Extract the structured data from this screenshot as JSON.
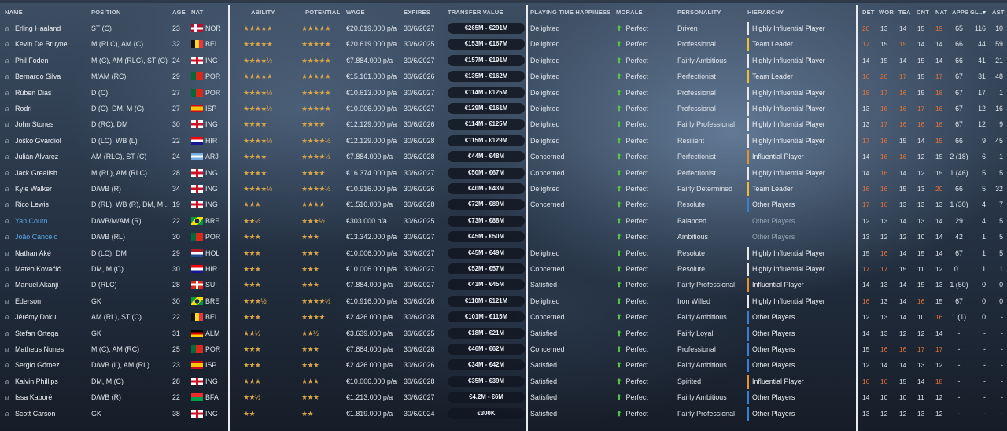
{
  "headers": {
    "name": "NAME",
    "position": "POSITION",
    "age": "AGE",
    "nat": "NAT",
    "ability": "ABILITY",
    "potential": "POTENTIAL",
    "wage": "WAGE",
    "expires": "EXPIRES",
    "transfer_value": "TRANSFER VALUE",
    "playing_time": "PLAYING TIME HAPPINESS",
    "morale": "MORALE",
    "personality": "PERSONALITY",
    "hierarchy": "HIERARCHY",
    "det": "DET",
    "wor": "WOR",
    "tea": "TEA",
    "cnt": "CNT",
    "nat_attr": "NAT",
    "apps": "APPS",
    "gls": "GL...",
    "sort_indicator": "▾",
    "ast": "AST"
  },
  "colors": {
    "stars": "#d4a34a",
    "morale_arrow": "#55c446",
    "loan_name": "#5aa8e6",
    "attr_high": "#e8733a",
    "attr_normal": "#dfe4ea",
    "hier_white": "#e8e8e8",
    "hier_yellow": "#e8c030",
    "hier_orange": "#e8922e",
    "hier_blue": "#3a7fd0"
  },
  "players": [
    {
      "name": "Erling Haaland",
      "position": "ST (C)",
      "age": "23",
      "nat": "NOR",
      "flag": "NOR",
      "ability": "★★★★★",
      "potential": "★★★★★",
      "wage": "€20.619.000 p/a",
      "expires": "30/6/2027",
      "tv": "€265M - €291M",
      "pth": "Delighted",
      "morale": "Perfect",
      "personality": "Driven",
      "hierarchy": "Highly Influential Player",
      "hcolor": "white",
      "det": "20",
      "wor": "13",
      "tea": "14",
      "cnt": "15",
      "natattr": "19",
      "apps": "65",
      "gls": "116",
      "ast": "10",
      "hi": [
        1,
        0,
        0,
        0,
        1
      ]
    },
    {
      "name": "Kevin De Bruyne",
      "position": "M (RLC), AM (C)",
      "age": "32",
      "nat": "BEL",
      "flag": "BEL",
      "ability": "★★★★★",
      "potential": "★★★★★",
      "wage": "€20.619.000 p/a",
      "expires": "30/6/2025",
      "tv": "€153M - €167M",
      "pth": "Delighted",
      "morale": "Perfect",
      "personality": "Professional",
      "hierarchy": "Team Leader",
      "hcolor": "yellow",
      "det": "17",
      "wor": "15",
      "tea": "15",
      "cnt": "14",
      "natattr": "14",
      "apps": "66",
      "gls": "44",
      "ast": "59",
      "hi": [
        1,
        0,
        1,
        0,
        0
      ]
    },
    {
      "name": "Phil Foden",
      "position": "M (C), AM (RLC), ST (C)",
      "age": "24",
      "nat": "ING",
      "flag": "ENG",
      "ability": "★★★★½",
      "potential": "★★★★★",
      "wage": "€7.884.000 p/a",
      "expires": "30/6/2027",
      "tv": "€157M - €191M",
      "pth": "Delighted",
      "morale": "Perfect",
      "personality": "Fairly Ambitious",
      "hierarchy": "Highly Influential Player",
      "hcolor": "white",
      "det": "14",
      "wor": "15",
      "tea": "14",
      "cnt": "15",
      "natattr": "14",
      "apps": "66",
      "gls": "41",
      "ast": "21",
      "hi": [
        0,
        0,
        0,
        0,
        0
      ]
    },
    {
      "name": "Bernardo Silva",
      "position": "M/AM (RC)",
      "age": "29",
      "nat": "POR",
      "flag": "POR",
      "ability": "★★★★★",
      "potential": "★★★★★",
      "wage": "€15.161.000 p/a",
      "expires": "30/6/2026",
      "tv": "€135M - €162M",
      "pth": "Delighted",
      "morale": "Perfect",
      "personality": "Perfectionist",
      "hierarchy": "Team Leader",
      "hcolor": "yellow",
      "det": "16",
      "wor": "20",
      "tea": "17",
      "cnt": "15",
      "natattr": "17",
      "apps": "67",
      "gls": "31",
      "ast": "48",
      "hi": [
        1,
        1,
        1,
        0,
        1
      ]
    },
    {
      "name": "Rúben Dias",
      "position": "D (C)",
      "age": "27",
      "nat": "POR",
      "flag": "POR",
      "ability": "★★★★½",
      "potential": "★★★★★",
      "wage": "€10.613.000 p/a",
      "expires": "30/6/2027",
      "tv": "€114M - €125M",
      "pth": "Delighted",
      "morale": "Perfect",
      "personality": "Professional",
      "hierarchy": "Highly Influential Player",
      "hcolor": "white",
      "det": "18",
      "wor": "17",
      "tea": "16",
      "cnt": "15",
      "natattr": "18",
      "apps": "67",
      "gls": "17",
      "ast": "1",
      "hi": [
        1,
        1,
        1,
        0,
        1
      ]
    },
    {
      "name": "Rodri",
      "position": "D (C), DM, M (C)",
      "age": "27",
      "nat": "ISP",
      "flag": "ESP",
      "ability": "★★★★½",
      "potential": "★★★★★",
      "wage": "€10.006.000 p/a",
      "expires": "30/6/2027",
      "tv": "€129M - €161M",
      "pth": "Delighted",
      "morale": "Perfect",
      "personality": "Professional",
      "hierarchy": "Highly Influential Player",
      "hcolor": "white",
      "det": "13",
      "wor": "16",
      "tea": "16",
      "cnt": "17",
      "natattr": "16",
      "apps": "67",
      "gls": "12",
      "ast": "16",
      "hi": [
        0,
        1,
        1,
        1,
        1
      ]
    },
    {
      "name": "John Stones",
      "position": "D (RC), DM",
      "age": "30",
      "nat": "ING",
      "flag": "ENG",
      "ability": "★★★★",
      "potential": "★★★★",
      "wage": "€12.129.000 p/a",
      "expires": "30/6/2026",
      "tv": "€114M - €125M",
      "pth": "Delighted",
      "morale": "Perfect",
      "personality": "Fairly Professional",
      "hierarchy": "Highly Influential Player",
      "hcolor": "white",
      "det": "13",
      "wor": "17",
      "tea": "16",
      "cnt": "16",
      "natattr": "16",
      "apps": "67",
      "gls": "12",
      "ast": "9",
      "hi": [
        0,
        1,
        1,
        1,
        1
      ]
    },
    {
      "name": "Joško Gvardiol",
      "position": "D (LC), WB (L)",
      "age": "22",
      "nat": "HIR",
      "flag": "CRO",
      "ability": "★★★★½",
      "potential": "★★★★½",
      "wage": "€12.129.000 p/a",
      "expires": "30/6/2028",
      "tv": "€115M - €129M",
      "pth": "Delighted",
      "morale": "Perfect",
      "personality": "Resilient",
      "hierarchy": "Highly Influential Player",
      "hcolor": "white",
      "det": "17",
      "wor": "16",
      "tea": "15",
      "cnt": "14",
      "natattr": "15",
      "apps": "66",
      "gls": "9",
      "ast": "45",
      "hi": [
        1,
        1,
        0,
        0,
        1
      ]
    },
    {
      "name": "Julián Álvarez",
      "position": "AM (RLC), ST (C)",
      "age": "24",
      "nat": "ARJ",
      "flag": "ARG",
      "ability": "★★★★",
      "potential": "★★★★½",
      "wage": "€7.884.000 p/a",
      "expires": "30/6/2028",
      "tv": "€44M - €48M",
      "pth": "Concerned",
      "morale": "Perfect",
      "personality": "Perfectionist",
      "hierarchy": "Influential Player",
      "hcolor": "orange",
      "det": "14",
      "wor": "16",
      "tea": "16",
      "cnt": "12",
      "natattr": "15",
      "apps": "2 (18)",
      "gls": "6",
      "ast": "1",
      "hi": [
        0,
        1,
        1,
        0,
        0
      ]
    },
    {
      "name": "Jack Grealish",
      "position": "M (RL), AM (RLC)",
      "age": "28",
      "nat": "ING",
      "flag": "ENG",
      "ability": "★★★★",
      "potential": "★★★★",
      "wage": "€16.374.000 p/a",
      "expires": "30/6/2027",
      "tv": "€50M - €67M",
      "pth": "Concerned",
      "morale": "Perfect",
      "personality": "Perfectionist",
      "hierarchy": "Highly Influential Player",
      "hcolor": "white",
      "det": "14",
      "wor": "16",
      "tea": "14",
      "cnt": "12",
      "natattr": "15",
      "apps": "1 (46)",
      "gls": "5",
      "ast": "5",
      "hi": [
        0,
        1,
        0,
        0,
        0
      ]
    },
    {
      "name": "Kyle Walker",
      "position": "D/WB (R)",
      "age": "34",
      "nat": "ING",
      "flag": "ENG",
      "ability": "★★★★½",
      "potential": "★★★★½",
      "wage": "€10.916.000 p/a",
      "expires": "30/6/2026",
      "tv": "€40M - €43M",
      "pth": "Delighted",
      "morale": "Perfect",
      "personality": "Fairly Determined",
      "hierarchy": "Team Leader",
      "hcolor": "yellow",
      "det": "16",
      "wor": "16",
      "tea": "15",
      "cnt": "13",
      "natattr": "20",
      "apps": "66",
      "gls": "5",
      "ast": "32",
      "hi": [
        1,
        1,
        0,
        0,
        1
      ]
    },
    {
      "name": "Rico Lewis",
      "position": "D (RL), WB (R), DM, M...",
      "age": "19",
      "nat": "ING",
      "flag": "ENG",
      "ability": "★★★",
      "potential": "★★★★",
      "wage": "€1.516.000 p/a",
      "expires": "30/6/2028",
      "tv": "€72M - €89M",
      "pth": "Concerned",
      "morale": "Perfect",
      "personality": "Resolute",
      "hierarchy": "Other Players",
      "hcolor": "blue",
      "det": "17",
      "wor": "16",
      "tea": "13",
      "cnt": "13",
      "natattr": "13",
      "apps": "1 (30)",
      "gls": "4",
      "ast": "7",
      "hi": [
        1,
        1,
        0,
        0,
        0
      ]
    },
    {
      "name": "Yan Couto",
      "loan": true,
      "position": "D/WB/M/AM (R)",
      "age": "22",
      "nat": "BRE",
      "flag": "BRA",
      "ability": "★★½",
      "potential": "★★★½",
      "wage": "€303.000 p/a",
      "expires": "30/6/2025",
      "tv": "€73M - €88M",
      "pth": "",
      "morale": "Perfect",
      "personality": "Balanced",
      "hierarchy": "Other Players",
      "hcolor": "none",
      "dim": true,
      "det": "12",
      "wor": "13",
      "tea": "14",
      "cnt": "13",
      "natattr": "14",
      "apps": "29",
      "gls": "4",
      "ast": "5",
      "hi": [
        0,
        0,
        0,
        0,
        0
      ]
    },
    {
      "name": "João Cancelo",
      "loan": true,
      "position": "D/WB (RL)",
      "age": "30",
      "nat": "POR",
      "flag": "POR",
      "ability": "★★★",
      "potential": "★★★",
      "wage": "€13.342.000 p/a",
      "expires": "30/6/2027",
      "tv": "€45M - €50M",
      "pth": "",
      "morale": "Perfect",
      "personality": "Ambitious",
      "hierarchy": "Other Players",
      "hcolor": "none",
      "dim": true,
      "det": "13",
      "wor": "12",
      "tea": "12",
      "cnt": "10",
      "natattr": "14",
      "apps": "42",
      "gls": "1",
      "ast": "5",
      "hi": [
        0,
        0,
        0,
        0,
        0
      ]
    },
    {
      "name": "Nathan Aké",
      "position": "D (LC), DM",
      "age": "29",
      "nat": "HOL",
      "flag": "NED",
      "ability": "★★★",
      "potential": "★★★",
      "wage": "€10.006.000 p/a",
      "expires": "30/6/2027",
      "tv": "€45M - €49M",
      "pth": "Delighted",
      "morale": "Perfect",
      "personality": "Resolute",
      "hierarchy": "Highly Influential Player",
      "hcolor": "white",
      "det": "15",
      "wor": "16",
      "tea": "14",
      "cnt": "15",
      "natattr": "14",
      "apps": "67",
      "gls": "1",
      "ast": "5",
      "hi": [
        0,
        1,
        0,
        0,
        0
      ]
    },
    {
      "name": "Mateo Kovačić",
      "position": "DM, M (C)",
      "age": "30",
      "nat": "HIR",
      "flag": "CRO",
      "ability": "★★★",
      "potential": "★★★",
      "wage": "€10.006.000 p/a",
      "expires": "30/6/2027",
      "tv": "€52M - €57M",
      "pth": "Concerned",
      "morale": "Perfect",
      "personality": "Resolute",
      "hierarchy": "Highly Influential Player",
      "hcolor": "white",
      "det": "17",
      "wor": "17",
      "tea": "15",
      "cnt": "11",
      "natattr": "12",
      "apps": "0...",
      "gls": "1",
      "ast": "1",
      "hi": [
        1,
        1,
        0,
        0,
        0
      ]
    },
    {
      "name": "Manuel Akanji",
      "position": "D (RLC)",
      "age": "28",
      "nat": "SUI",
      "flag": "SUI",
      "ability": "★★★",
      "potential": "★★★",
      "wage": "€7.884.000 p/a",
      "expires": "30/6/2027",
      "tv": "€41M - €45M",
      "pth": "Satisfied",
      "morale": "Perfect",
      "personality": "Fairly Professional",
      "hierarchy": "Influential Player",
      "hcolor": "orange",
      "det": "14",
      "wor": "13",
      "tea": "14",
      "cnt": "15",
      "natattr": "13",
      "apps": "1 (50)",
      "gls": "0",
      "ast": "0",
      "hi": [
        0,
        0,
        0,
        0,
        0
      ]
    },
    {
      "name": "Ederson",
      "position": "GK",
      "age": "30",
      "nat": "BRE",
      "flag": "BRA",
      "ability": "★★★½",
      "potential": "★★★★½",
      "wage": "€10.916.000 p/a",
      "expires": "30/6/2026",
      "tv": "€110M - €121M",
      "pth": "Delighted",
      "morale": "Perfect",
      "personality": "Iron Willed",
      "hierarchy": "Highly Influential Player",
      "hcolor": "white",
      "det": "16",
      "wor": "13",
      "tea": "14",
      "cnt": "16",
      "natattr": "15",
      "apps": "67",
      "gls": "0",
      "ast": "0",
      "hi": [
        1,
        0,
        0,
        1,
        0
      ]
    },
    {
      "name": "Jérémy Doku",
      "position": "AM (RL), ST (C)",
      "age": "22",
      "nat": "BEL",
      "flag": "BEL",
      "ability": "★★★",
      "potential": "★★★★",
      "wage": "€2.426.000 p/a",
      "expires": "30/6/2028",
      "tv": "€101M - €115M",
      "pth": "Concerned",
      "morale": "Perfect",
      "personality": "Fairly Ambitious",
      "hierarchy": "Other Players",
      "hcolor": "blue",
      "det": "12",
      "wor": "13",
      "tea": "14",
      "cnt": "10",
      "natattr": "16",
      "apps": "1 (1)",
      "gls": "0",
      "ast": "-",
      "hi": [
        0,
        0,
        0,
        0,
        1
      ]
    },
    {
      "name": "Stefan Ortega",
      "position": "GK",
      "age": "31",
      "nat": "ALM",
      "flag": "GER",
      "ability": "★★½",
      "potential": "★★½",
      "wage": "€3.639.000 p/a",
      "expires": "30/6/2025",
      "tv": "€18M - €21M",
      "pth": "Satisfied",
      "morale": "Perfect",
      "personality": "Fairly Loyal",
      "hierarchy": "Other Players",
      "hcolor": "blue",
      "det": "14",
      "wor": "13",
      "tea": "12",
      "cnt": "12",
      "natattr": "14",
      "apps": "-",
      "gls": "-",
      "ast": "-",
      "hi": [
        0,
        0,
        0,
        0,
        0
      ]
    },
    {
      "name": "Matheus Nunes",
      "position": "M (C), AM (RC)",
      "age": "25",
      "nat": "POR",
      "flag": "POR",
      "ability": "★★★",
      "potential": "★★★",
      "wage": "€7.884.000 p/a",
      "expires": "30/6/2028",
      "tv": "€46M - €62M",
      "pth": "Concerned",
      "morale": "Perfect",
      "personality": "Professional",
      "hierarchy": "Other Players",
      "hcolor": "blue",
      "det": "15",
      "wor": "16",
      "tea": "16",
      "cnt": "17",
      "natattr": "17",
      "apps": "-",
      "gls": "-",
      "ast": "-",
      "hi": [
        0,
        1,
        1,
        1,
        1
      ]
    },
    {
      "name": "Sergio Gómez",
      "position": "D/WB (L), AM (RL)",
      "age": "23",
      "nat": "ISP",
      "flag": "ESP",
      "ability": "★★★",
      "potential": "★★★",
      "wage": "€2.426.000 p/a",
      "expires": "30/6/2026",
      "tv": "€34M - €42M",
      "pth": "Satisfied",
      "morale": "Perfect",
      "personality": "Fairly Ambitious",
      "hierarchy": "Other Players",
      "hcolor": "blue",
      "det": "12",
      "wor": "14",
      "tea": "14",
      "cnt": "13",
      "natattr": "12",
      "apps": "-",
      "gls": "-",
      "ast": "-",
      "hi": [
        0,
        0,
        0,
        0,
        0
      ]
    },
    {
      "name": "Kalvin Phillips",
      "position": "DM, M (C)",
      "age": "28",
      "nat": "ING",
      "flag": "ENG",
      "ability": "★★★",
      "potential": "★★★",
      "wage": "€10.006.000 p/a",
      "expires": "30/6/2028",
      "tv": "€35M - €39M",
      "pth": "Satisfied",
      "morale": "Perfect",
      "personality": "Spirited",
      "hierarchy": "Influential Player",
      "hcolor": "orange",
      "det": "16",
      "wor": "16",
      "tea": "15",
      "cnt": "14",
      "natattr": "18",
      "apps": "-",
      "gls": "-",
      "ast": "-",
      "hi": [
        1,
        1,
        0,
        0,
        1
      ]
    },
    {
      "name": "Issa Kaboré",
      "position": "D/WB (R)",
      "age": "22",
      "nat": "BFA",
      "flag": "BFA",
      "ability": "★★½",
      "potential": "★★★",
      "wage": "€1.213.000 p/a",
      "expires": "30/6/2027",
      "tv": "€4.2M - €6M",
      "pth": "Satisfied",
      "morale": "Perfect",
      "personality": "Fairly Ambitious",
      "hierarchy": "Other Players",
      "hcolor": "blue",
      "det": "14",
      "wor": "10",
      "tea": "10",
      "cnt": "11",
      "natattr": "12",
      "apps": "-",
      "gls": "-",
      "ast": "-",
      "hi": [
        0,
        0,
        0,
        0,
        0
      ]
    },
    {
      "name": "Scott Carson",
      "position": "GK",
      "age": "38",
      "nat": "ING",
      "flag": "ENG",
      "ability": "★★",
      "potential": "★★",
      "wage": "€1.819.000 p/a",
      "expires": "30/6/2024",
      "tv": "€300K",
      "pth": "Satisfied",
      "morale": "Perfect",
      "personality": "Fairly Professional",
      "hierarchy": "Other Players",
      "hcolor": "blue",
      "det": "13",
      "wor": "12",
      "tea": "12",
      "cnt": "13",
      "natattr": "12",
      "apps": "-",
      "gls": "-",
      "ast": "-",
      "hi": [
        0,
        0,
        0,
        0,
        0
      ]
    }
  ]
}
